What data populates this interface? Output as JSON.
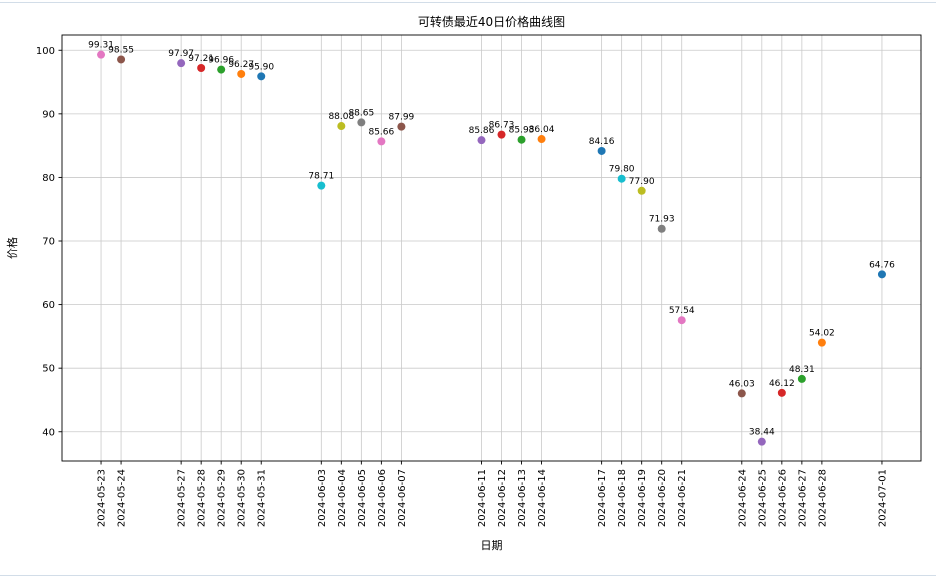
{
  "page": {
    "background": "#ffffff"
  },
  "chart_data": {
    "type": "scatter",
    "title": "可转债最近40日价格曲线图",
    "xlabel": "日期",
    "ylabel": "价格",
    "ylim": [
      35.4,
      102.4
    ],
    "yticks": [
      40,
      50,
      60,
      70,
      80,
      90,
      100
    ],
    "grid": true,
    "legend": "none",
    "x_type": "date",
    "annotation_format": "2dp",
    "points": [
      {
        "date": "2024-05-23",
        "value": 99.31,
        "color": "#e377c2"
      },
      {
        "date": "2024-05-24",
        "value": 98.55,
        "color": "#8c564b"
      },
      {
        "date": "2024-05-27",
        "value": 97.97,
        "color": "#9467bd"
      },
      {
        "date": "2024-05-28",
        "value": 97.21,
        "color": "#d62728"
      },
      {
        "date": "2024-05-29",
        "value": 96.96,
        "color": "#2ca02c"
      },
      {
        "date": "2024-05-30",
        "value": 96.27,
        "color": "#ff7f0e"
      },
      {
        "date": "2024-05-31",
        "value": 95.9,
        "color": "#1f77b4"
      },
      {
        "date": "2024-06-03",
        "value": 78.71,
        "color": "#17becf"
      },
      {
        "date": "2024-06-04",
        "value": 88.08,
        "color": "#bcbd22"
      },
      {
        "date": "2024-06-05",
        "value": 88.65,
        "color": "#7f7f7f"
      },
      {
        "date": "2024-06-06",
        "value": 85.66,
        "color": "#e377c2"
      },
      {
        "date": "2024-06-07",
        "value": 87.99,
        "color": "#8c564b"
      },
      {
        "date": "2024-06-11",
        "value": 85.86,
        "color": "#9467bd"
      },
      {
        "date": "2024-06-12",
        "value": 86.73,
        "color": "#d62728"
      },
      {
        "date": "2024-06-13",
        "value": 85.93,
        "color": "#2ca02c"
      },
      {
        "date": "2024-06-14",
        "value": 86.04,
        "color": "#ff7f0e"
      },
      {
        "date": "2024-06-17",
        "value": 84.16,
        "color": "#1f77b4"
      },
      {
        "date": "2024-06-18",
        "value": 79.8,
        "color": "#17becf"
      },
      {
        "date": "2024-06-19",
        "value": 77.9,
        "color": "#bcbd22"
      },
      {
        "date": "2024-06-20",
        "value": 71.93,
        "color": "#7f7f7f"
      },
      {
        "date": "2024-06-21",
        "value": 57.54,
        "color": "#e377c2"
      },
      {
        "date": "2024-06-24",
        "value": 46.03,
        "color": "#8c564b"
      },
      {
        "date": "2024-06-25",
        "value": 38.44,
        "color": "#9467bd"
      },
      {
        "date": "2024-06-26",
        "value": 46.12,
        "color": "#d62728"
      },
      {
        "date": "2024-06-27",
        "value": 48.31,
        "color": "#2ca02c"
      },
      {
        "date": "2024-06-28",
        "value": 54.02,
        "color": "#ff7f0e"
      },
      {
        "date": "2024-07-01",
        "value": 64.76,
        "color": "#1f77b4"
      }
    ]
  }
}
